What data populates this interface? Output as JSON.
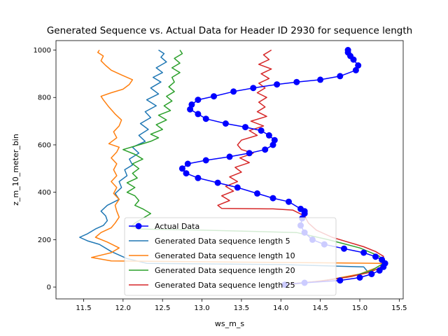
{
  "chart_data": {
    "type": "line",
    "title": "Generated Sequence vs. Actual Data for Header ID 2930 for sequence length",
    "xlabel": "ws_m_s",
    "ylabel": "z_m_10_meter_bin",
    "xlim": [
      11.15,
      15.55
    ],
    "ylim": [
      -50,
      1040
    ],
    "xticks": [
      "11.5",
      "12.0",
      "12.5",
      "13.0",
      "13.5",
      "14.0",
      "14.5",
      "15.0",
      "15.5"
    ],
    "yticks": [
      "0",
      "200",
      "400",
      "600",
      "800",
      "1000"
    ],
    "grid": false,
    "legend_position": "lower-center",
    "series": [
      {
        "name": "Actual Data",
        "color": "#0000ff",
        "marker": "circle",
        "points": [
          [
            14.05,
            10
          ],
          [
            14.3,
            18
          ],
          [
            14.75,
            28
          ],
          [
            15.0,
            40
          ],
          [
            15.15,
            55
          ],
          [
            15.25,
            70
          ],
          [
            15.3,
            85
          ],
          [
            15.32,
            100
          ],
          [
            15.28,
            115
          ],
          [
            15.2,
            128
          ],
          [
            15.05,
            145
          ],
          [
            14.8,
            162
          ],
          [
            14.55,
            180
          ],
          [
            14.4,
            200
          ],
          [
            14.3,
            230
          ],
          [
            14.25,
            260
          ],
          [
            14.27,
            290
          ],
          [
            14.3,
            310
          ],
          [
            14.3,
            320
          ],
          [
            14.25,
            330
          ],
          [
            14.1,
            360
          ],
          [
            13.9,
            375
          ],
          [
            13.7,
            395
          ],
          [
            13.45,
            420
          ],
          [
            13.2,
            440
          ],
          [
            12.95,
            460
          ],
          [
            12.8,
            480
          ],
          [
            12.75,
            500
          ],
          [
            12.82,
            520
          ],
          [
            13.05,
            535
          ],
          [
            13.35,
            550
          ],
          [
            13.6,
            565
          ],
          [
            13.8,
            580
          ],
          [
            13.9,
            600
          ],
          [
            13.92,
            620
          ],
          [
            13.85,
            640
          ],
          [
            13.75,
            660
          ],
          [
            13.55,
            675
          ],
          [
            13.3,
            690
          ],
          [
            13.05,
            710
          ],
          [
            12.95,
            730
          ],
          [
            12.85,
            750
          ],
          [
            12.87,
            770
          ],
          [
            12.95,
            790
          ],
          [
            13.15,
            805
          ],
          [
            13.4,
            825
          ],
          [
            13.65,
            840
          ],
          [
            13.95,
            855
          ],
          [
            14.2,
            865
          ],
          [
            14.5,
            875
          ],
          [
            14.75,
            890
          ],
          [
            14.95,
            915
          ],
          [
            14.98,
            935
          ],
          [
            14.92,
            960
          ],
          [
            14.88,
            975
          ],
          [
            14.85,
            990
          ],
          [
            14.85,
            1000
          ]
        ]
      },
      {
        "name": "Generated Data sequence length 5",
        "color": "#1f77b4",
        "marker": "none",
        "points": [
          [
            14.0,
            10
          ],
          [
            14.5,
            25
          ],
          [
            14.9,
            45
          ],
          [
            15.1,
            65
          ],
          [
            15.05,
            85
          ],
          [
            14.0,
            95
          ],
          [
            12.3,
            100
          ],
          [
            12.05,
            120
          ],
          [
            11.85,
            150
          ],
          [
            11.7,
            180
          ],
          [
            11.55,
            195
          ],
          [
            11.45,
            210
          ],
          [
            11.55,
            225
          ],
          [
            11.65,
            245
          ],
          [
            11.75,
            260
          ],
          [
            11.8,
            280
          ],
          [
            11.78,
            300
          ],
          [
            11.72,
            320
          ],
          [
            11.8,
            345
          ],
          [
            11.95,
            370
          ],
          [
            11.9,
            395
          ],
          [
            11.98,
            420
          ],
          [
            11.95,
            445
          ],
          [
            12.05,
            470
          ],
          [
            12.02,
            495
          ],
          [
            12.12,
            515
          ],
          [
            12.08,
            540
          ],
          [
            12.2,
            565
          ],
          [
            12.12,
            590
          ],
          [
            12.28,
            615
          ],
          [
            12.2,
            640
          ],
          [
            12.32,
            665
          ],
          [
            12.22,
            690
          ],
          [
            12.35,
            715
          ],
          [
            12.28,
            740
          ],
          [
            12.42,
            765
          ],
          [
            12.3,
            790
          ],
          [
            12.45,
            815
          ],
          [
            12.35,
            840
          ],
          [
            12.48,
            865
          ],
          [
            12.38,
            885
          ],
          [
            12.5,
            905
          ],
          [
            12.42,
            925
          ],
          [
            12.55,
            950
          ],
          [
            12.48,
            970
          ],
          [
            12.52,
            985
          ],
          [
            12.45,
            1000
          ]
        ]
      },
      {
        "name": "Generated Data sequence length 10",
        "color": "#ff7f0e",
        "marker": "none",
        "points": [
          [
            14.1,
            10
          ],
          [
            14.6,
            30
          ],
          [
            15.0,
            55
          ],
          [
            15.2,
            80
          ],
          [
            15.3,
            100
          ],
          [
            13.5,
            105
          ],
          [
            11.85,
            110
          ],
          [
            11.6,
            125
          ],
          [
            11.85,
            145
          ],
          [
            11.95,
            165
          ],
          [
            11.8,
            190
          ],
          [
            11.65,
            210
          ],
          [
            11.72,
            230
          ],
          [
            11.85,
            250
          ],
          [
            11.9,
            270
          ],
          [
            11.95,
            295
          ],
          [
            11.92,
            320
          ],
          [
            11.9,
            345
          ],
          [
            11.95,
            370
          ],
          [
            11.88,
            395
          ],
          [
            11.92,
            420
          ],
          [
            11.85,
            445
          ],
          [
            11.92,
            470
          ],
          [
            11.88,
            495
          ],
          [
            11.92,
            520
          ],
          [
            11.85,
            545
          ],
          [
            11.92,
            570
          ],
          [
            11.95,
            590
          ],
          [
            11.82,
            605
          ],
          [
            11.92,
            630
          ],
          [
            11.88,
            655
          ],
          [
            11.95,
            680
          ],
          [
            11.98,
            705
          ],
          [
            11.9,
            730
          ],
          [
            11.82,
            760
          ],
          [
            11.75,
            790
          ],
          [
            11.72,
            805
          ],
          [
            11.85,
            820
          ],
          [
            12.0,
            835
          ],
          [
            12.08,
            855
          ],
          [
            12.12,
            875
          ],
          [
            11.98,
            895
          ],
          [
            11.85,
            915
          ],
          [
            11.78,
            935
          ],
          [
            11.72,
            955
          ],
          [
            11.75,
            975
          ],
          [
            11.68,
            990
          ],
          [
            11.7,
            1000
          ]
        ]
      },
      {
        "name": "Generated Data sequence length 20",
        "color": "#2ca02c",
        "marker": "none",
        "points": [
          [
            14.05,
            10
          ],
          [
            14.5,
            25
          ],
          [
            14.9,
            45
          ],
          [
            15.15,
            70
          ],
          [
            15.3,
            100
          ],
          [
            15.25,
            130
          ],
          [
            15.0,
            165
          ],
          [
            14.6,
            200
          ],
          [
            14.2,
            230
          ],
          [
            13.0,
            240
          ],
          [
            12.2,
            245
          ],
          [
            12.1,
            255
          ],
          [
            12.15,
            270
          ],
          [
            12.25,
            290
          ],
          [
            12.35,
            310
          ],
          [
            12.25,
            330
          ],
          [
            12.15,
            345
          ],
          [
            12.2,
            365
          ],
          [
            12.15,
            385
          ],
          [
            12.05,
            400
          ],
          [
            12.15,
            420
          ],
          [
            12.05,
            440
          ],
          [
            12.18,
            460
          ],
          [
            12.12,
            480
          ],
          [
            12.2,
            500
          ],
          [
            12.12,
            520
          ],
          [
            12.25,
            540
          ],
          [
            12.15,
            560
          ],
          [
            12.0,
            580
          ],
          [
            12.2,
            600
          ],
          [
            12.35,
            615
          ],
          [
            12.45,
            630
          ],
          [
            12.35,
            645
          ],
          [
            12.5,
            665
          ],
          [
            12.42,
            685
          ],
          [
            12.55,
            705
          ],
          [
            12.45,
            725
          ],
          [
            12.6,
            745
          ],
          [
            12.52,
            765
          ],
          [
            12.62,
            785
          ],
          [
            12.55,
            805
          ],
          [
            12.65,
            825
          ],
          [
            12.58,
            845
          ],
          [
            12.65,
            865
          ],
          [
            12.62,
            885
          ],
          [
            12.72,
            905
          ],
          [
            12.62,
            925
          ],
          [
            12.72,
            945
          ],
          [
            12.65,
            965
          ],
          [
            12.75,
            985
          ],
          [
            12.72,
            1000
          ]
        ]
      },
      {
        "name": "Generated Data sequence length 25",
        "color": "#d62728",
        "marker": "none",
        "points": [
          [
            14.0,
            10
          ],
          [
            14.5,
            25
          ],
          [
            14.85,
            42
          ],
          [
            15.1,
            60
          ],
          [
            15.25,
            80
          ],
          [
            15.3,
            100
          ],
          [
            15.3,
            130
          ],
          [
            15.2,
            150
          ],
          [
            15.05,
            170
          ],
          [
            14.85,
            190
          ],
          [
            14.65,
            210
          ],
          [
            14.45,
            240
          ],
          [
            14.35,
            270
          ],
          [
            14.3,
            300
          ],
          [
            14.15,
            325
          ],
          [
            13.9,
            330
          ],
          [
            13.25,
            332
          ],
          [
            13.2,
            345
          ],
          [
            13.35,
            365
          ],
          [
            13.25,
            385
          ],
          [
            13.4,
            405
          ],
          [
            13.3,
            425
          ],
          [
            13.45,
            445
          ],
          [
            13.35,
            465
          ],
          [
            13.5,
            485
          ],
          [
            13.42,
            505
          ],
          [
            13.6,
            525
          ],
          [
            13.48,
            545
          ],
          [
            13.65,
            565
          ],
          [
            13.5,
            580
          ],
          [
            13.45,
            600
          ],
          [
            13.5,
            620
          ],
          [
            13.7,
            640
          ],
          [
            13.6,
            660
          ],
          [
            13.78,
            680
          ],
          [
            13.62,
            700
          ],
          [
            13.82,
            720
          ],
          [
            13.7,
            740
          ],
          [
            13.8,
            760
          ],
          [
            13.72,
            780
          ],
          [
            13.82,
            800
          ],
          [
            13.7,
            820
          ],
          [
            13.8,
            840
          ],
          [
            13.72,
            860
          ],
          [
            13.85,
            880
          ],
          [
            13.75,
            900
          ],
          [
            13.88,
            920
          ],
          [
            13.72,
            940
          ],
          [
            13.85,
            960
          ],
          [
            13.78,
            980
          ],
          [
            13.88,
            1000
          ]
        ]
      }
    ]
  }
}
